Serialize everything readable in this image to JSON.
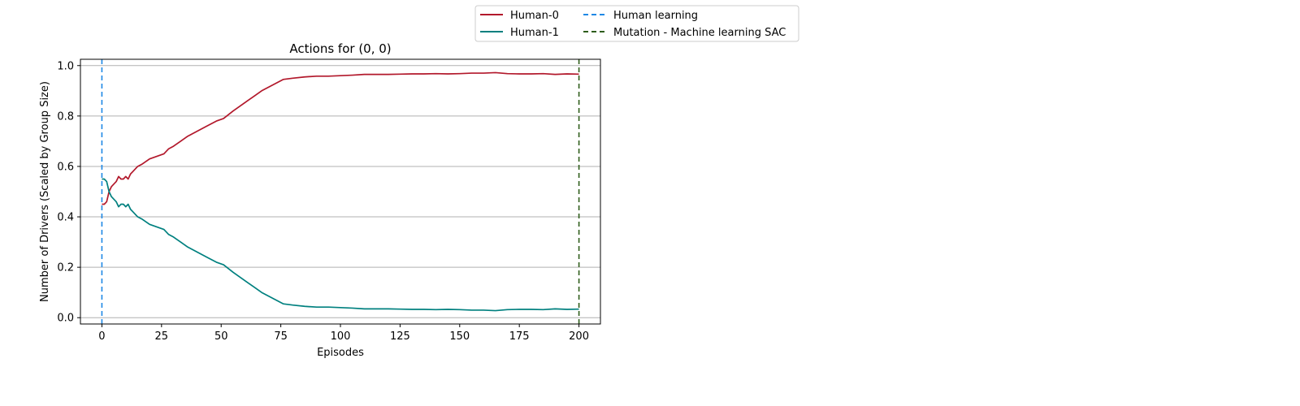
{
  "chart_data": {
    "type": "line",
    "title": "Actions for (0, 0)",
    "xlabel": "Episodes",
    "ylabel": "Number of Drivers (Scaled by Group Size)",
    "xlim": [
      -9,
      209
    ],
    "ylim": [
      -0.025,
      1.025
    ],
    "xticks": [
      0,
      25,
      50,
      75,
      100,
      125,
      150,
      175,
      200
    ],
    "yticks": [
      0.0,
      0.2,
      0.4,
      0.6,
      0.8,
      1.0
    ],
    "ytick_labels": [
      "0.0",
      "0.2",
      "0.4",
      "0.6",
      "0.8",
      "1.0"
    ],
    "grid": "horizontal",
    "legend_position": "top-right outside, two columns",
    "series": [
      {
        "name": "Human-0",
        "color": "#b2182b",
        "style": "solid",
        "x": [
          0,
          1,
          2,
          3,
          4,
          5,
          6,
          7,
          8,
          9,
          10,
          11,
          12,
          13,
          14,
          15,
          17,
          20,
          23,
          26,
          28,
          30,
          33,
          36,
          40,
          44,
          48,
          51,
          55,
          58,
          61,
          64,
          67,
          70,
          73,
          76,
          80,
          85,
          90,
          95,
          100,
          105,
          110,
          115,
          120,
          125,
          130,
          135,
          140,
          145,
          150,
          155,
          160,
          165,
          170,
          175,
          180,
          185,
          190,
          195,
          200
        ],
        "values": [
          0.45,
          0.45,
          0.46,
          0.5,
          0.52,
          0.53,
          0.54,
          0.56,
          0.55,
          0.55,
          0.56,
          0.55,
          0.57,
          0.58,
          0.59,
          0.6,
          0.61,
          0.63,
          0.64,
          0.65,
          0.67,
          0.68,
          0.7,
          0.72,
          0.74,
          0.76,
          0.78,
          0.79,
          0.82,
          0.84,
          0.86,
          0.88,
          0.9,
          0.915,
          0.93,
          0.945,
          0.95,
          0.955,
          0.958,
          0.958,
          0.96,
          0.962,
          0.965,
          0.965,
          0.965,
          0.966,
          0.967,
          0.967,
          0.968,
          0.967,
          0.968,
          0.97,
          0.97,
          0.972,
          0.968,
          0.967,
          0.967,
          0.968,
          0.965,
          0.967,
          0.966
        ]
      },
      {
        "name": "Human-1",
        "color": "#00807f",
        "style": "solid",
        "x": [
          0,
          1,
          2,
          3,
          4,
          5,
          6,
          7,
          8,
          9,
          10,
          11,
          12,
          13,
          14,
          15,
          17,
          20,
          23,
          26,
          28,
          30,
          33,
          36,
          40,
          44,
          48,
          51,
          55,
          58,
          61,
          64,
          67,
          70,
          73,
          76,
          80,
          85,
          90,
          95,
          100,
          105,
          110,
          115,
          120,
          125,
          130,
          135,
          140,
          145,
          150,
          155,
          160,
          165,
          170,
          175,
          180,
          185,
          190,
          195,
          200
        ],
        "values": [
          0.55,
          0.55,
          0.54,
          0.5,
          0.48,
          0.47,
          0.46,
          0.44,
          0.45,
          0.45,
          0.44,
          0.45,
          0.43,
          0.42,
          0.41,
          0.4,
          0.39,
          0.37,
          0.36,
          0.35,
          0.33,
          0.32,
          0.3,
          0.28,
          0.26,
          0.24,
          0.22,
          0.21,
          0.18,
          0.16,
          0.14,
          0.12,
          0.1,
          0.085,
          0.07,
          0.055,
          0.05,
          0.045,
          0.042,
          0.042,
          0.04,
          0.038,
          0.035,
          0.035,
          0.035,
          0.034,
          0.033,
          0.033,
          0.032,
          0.033,
          0.032,
          0.03,
          0.03,
          0.028,
          0.032,
          0.033,
          0.033,
          0.032,
          0.035,
          0.033,
          0.034
        ]
      }
    ],
    "vlines": [
      {
        "name": "Human learning",
        "x": 0,
        "color": "#1e88e5",
        "style": "dashed"
      },
      {
        "name": "Mutation - Machine learning SAC",
        "x": 200,
        "color": "#2e5d1a",
        "style": "dashed"
      }
    ]
  }
}
